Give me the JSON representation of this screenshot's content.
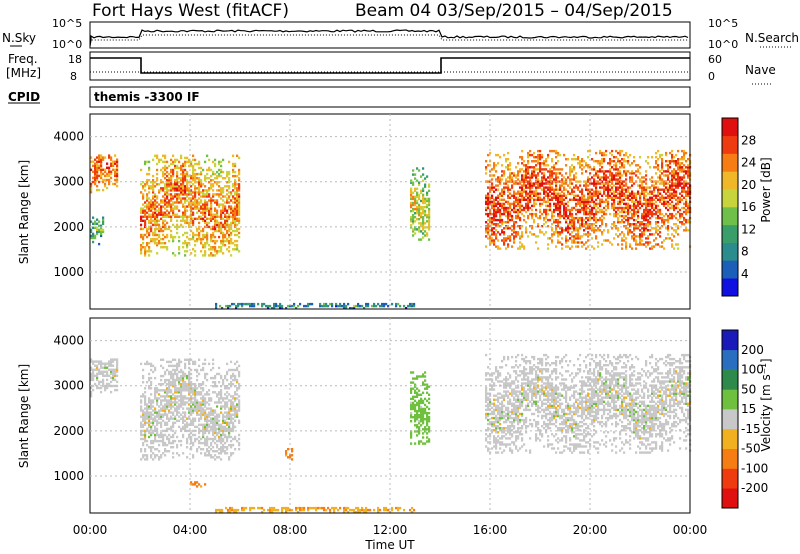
{
  "header": {
    "radar": "Fort Hays West (fitACF)",
    "beam_range": "Beam 04 03/Sep/2015 – 04/Sep/2015"
  },
  "aux_panels": {
    "nsky_label": "N.Sky",
    "nsearch_label": "N.Search",
    "nsky_ticks": [
      "10^5",
      "10^0"
    ],
    "nsearch_ticks": [
      "10^5",
      "10^0"
    ],
    "freq_label_line1": "Freq.",
    "freq_label_line2": "[MHz]",
    "freq_ticks": [
      "18",
      "8"
    ],
    "nave_label": "Nave",
    "nave_ticks": [
      "60",
      "0"
    ],
    "cpid_label": "CPID",
    "cpid_text": "themis -3300 IF"
  },
  "chart_data": [
    {
      "type": "heatmap",
      "name": "power",
      "ylabel": "Slant Range [km]",
      "xlabel": "Time UT",
      "xlim": [
        "00:00",
        "24:00"
      ],
      "ylim": [
        180,
        4500
      ],
      "x_tick_labels": [
        "00:00",
        "04:00",
        "08:00",
        "12:00",
        "16:00",
        "20:00",
        "00:00"
      ],
      "y_tick_labels": [
        "1000",
        "2000",
        "3000",
        "4000"
      ],
      "colorbar": {
        "label": "Power [dB]",
        "ticks": [
          "4",
          "8",
          "12",
          "16",
          "20",
          "24",
          "28"
        ],
        "colors": [
          "#1010e0",
          "#1c5fb8",
          "#2a8c8c",
          "#3a9e6a",
          "#6fc04a",
          "#c8d43c",
          "#f0b828",
          "#f57d14",
          "#ee3c10",
          "#e01010"
        ]
      },
      "echo_regions": [
        {
          "t_start": 0.0,
          "t_end": 1.1,
          "r_low": 2750,
          "r_high": 3600,
          "power": 21
        },
        {
          "t_start": 0.0,
          "t_end": 0.5,
          "r_low": 1600,
          "r_high": 2200,
          "power": 9
        },
        {
          "t_start": 2.0,
          "t_end": 6.0,
          "r_low": 1350,
          "r_high": 3600,
          "power": 19
        },
        {
          "t_start": 12.8,
          "t_end": 13.6,
          "r_low": 1700,
          "r_high": 3300,
          "power": 14
        },
        {
          "t_start": 15.8,
          "t_end": 24.0,
          "r_low": 1500,
          "r_high": 3700,
          "power": 22
        },
        {
          "t_start": 5.0,
          "t_end": 13.0,
          "r_low": 180,
          "r_high": 300,
          "power": 6
        }
      ]
    },
    {
      "type": "heatmap",
      "name": "velocity",
      "ylabel": "Slant Range [km]",
      "xlabel": "Time UT",
      "xlim": [
        "00:00",
        "24:00"
      ],
      "ylim": [
        180,
        4500
      ],
      "x_tick_labels": [
        "00:00",
        "04:00",
        "08:00",
        "12:00",
        "16:00",
        "20:00",
        "00:00"
      ],
      "y_tick_labels": [
        "1000",
        "2000",
        "3000",
        "4000"
      ],
      "colorbar": {
        "label": "Velocity [m s⁻¹]",
        "ticks": [
          "200",
          "100",
          "50",
          "15",
          "-15",
          "-50",
          "-100",
          "-200"
        ],
        "colors": [
          "#1a1ab8",
          "#2a6ec0",
          "#2e8a4a",
          "#70c040",
          "#c8c8c8",
          "#f0b020",
          "#f57d14",
          "#ee3c10",
          "#e01010"
        ]
      },
      "echo_regions": [
        {
          "t_start": 0.0,
          "t_end": 1.1,
          "r_low": 2750,
          "r_high": 3600,
          "velocity": 0
        },
        {
          "t_start": 2.0,
          "t_end": 6.0,
          "r_low": 1350,
          "r_high": 3600,
          "velocity": 0
        },
        {
          "t_start": 12.8,
          "t_end": 13.6,
          "r_low": 1700,
          "r_high": 3300,
          "velocity": 30
        },
        {
          "t_start": 15.8,
          "t_end": 24.0,
          "r_low": 1500,
          "r_high": 3700,
          "velocity": 0
        },
        {
          "t_start": 5.0,
          "t_end": 13.0,
          "r_low": 180,
          "r_high": 300,
          "velocity": -40
        },
        {
          "t_start": 4.0,
          "t_end": 4.6,
          "r_low": 750,
          "r_high": 850,
          "velocity": -60
        },
        {
          "t_start": 7.8,
          "t_end": 8.2,
          "r_low": 1350,
          "r_high": 1650,
          "velocity": -60
        }
      ]
    }
  ]
}
